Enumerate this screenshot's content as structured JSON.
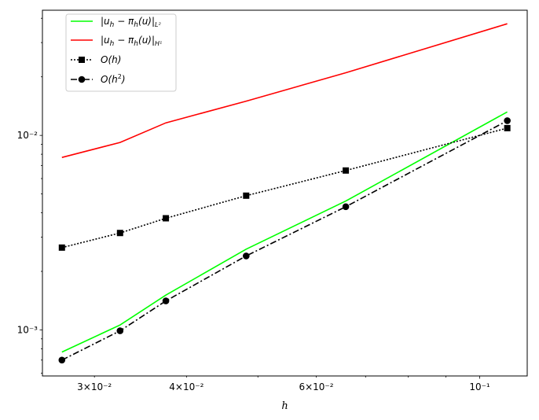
{
  "chart_data": {
    "type": "line",
    "xscale": "log",
    "yscale": "log",
    "xlabel": "h",
    "ylabel": "",
    "xlim": [
      0.0255,
      0.116
    ],
    "ylim": [
      0.00058,
      0.044
    ],
    "grid": false,
    "legend_position": "upper-left",
    "x_tick_labels": [
      {
        "value": 0.03,
        "label": "3×10⁻²"
      },
      {
        "value": 0.04,
        "label": "4×10⁻²"
      },
      {
        "value": 0.06,
        "label": "6×10⁻²"
      },
      {
        "value": 0.1,
        "label": "10⁻¹"
      }
    ],
    "y_tick_labels": [
      {
        "value": 0.001,
        "label": "10⁻³"
      },
      {
        "value": 0.01,
        "label": "10⁻²"
      }
    ],
    "x": [
      0.0271,
      0.0325,
      0.0375,
      0.0482,
      0.0658,
      0.109
    ],
    "series": [
      {
        "name": "|u_h − π_h(u)|_{L²}",
        "color": "#00ff00",
        "linestyle": "solid",
        "marker": "none",
        "values": [
          0.00077,
          0.00106,
          0.00151,
          0.0026,
          0.0046,
          0.0132
        ]
      },
      {
        "name": "|u_h − π_h(u)|_{H¹}",
        "color": "#ff0000",
        "linestyle": "solid",
        "marker": "none",
        "values": [
          0.0077,
          0.0092,
          0.0116,
          0.015,
          0.021,
          0.0375
        ]
      },
      {
        "name": "O(h)",
        "color": "#000000",
        "linestyle": "dotted",
        "marker": "square",
        "values": [
          0.00265,
          0.00315,
          0.00375,
          0.0049,
          0.0066,
          0.0109
        ]
      },
      {
        "name": "O(h²)",
        "color": "#000000",
        "linestyle": "dashdot",
        "marker": "circle",
        "values": [
          0.0007,
          0.00099,
          0.00141,
          0.0024,
          0.0043,
          0.0119
        ]
      }
    ],
    "legend": [
      {
        "main": "|u",
        "sub": "h",
        "mid": " − π",
        "sub2": "h",
        "tail": "(u)|",
        "end_sub": "L²"
      },
      {
        "main": "|u",
        "sub": "h",
        "mid": " − π",
        "sub2": "h",
        "tail": "(u)|",
        "end_sub": "H¹"
      },
      {
        "main": "O(h)",
        "sub": "",
        "mid": "",
        "sub2": "",
        "tail": "",
        "end_sub": ""
      },
      {
        "main": "O(h",
        "sub": "",
        "mid": "",
        "sub2": "",
        "tail": "",
        "end_sub": "",
        "sup": "2",
        "close": ")"
      }
    ]
  }
}
